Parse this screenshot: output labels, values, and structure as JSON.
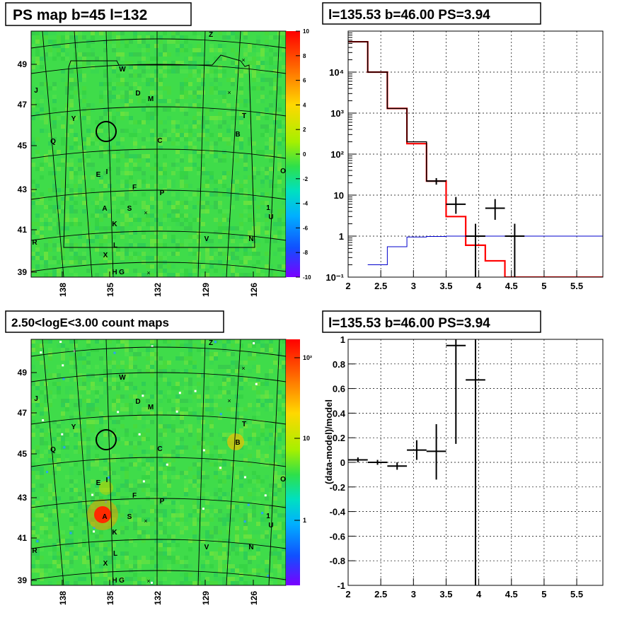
{
  "panels": {
    "ps_map": {
      "title": "PS map b=45 l=132",
      "colorbar_ticks": [
        "10",
        "8",
        "6",
        "4",
        "2",
        "0",
        "-2",
        "-4",
        "-6",
        "-8",
        "-10"
      ],
      "y_ticks": [
        "49",
        "47",
        "45",
        "43",
        "41",
        "39"
      ],
      "x_ticks": [
        "138",
        "135",
        "132",
        "129",
        "126"
      ]
    },
    "count_map": {
      "title": "2.50<logE<3.00 count maps",
      "colorbar_ticks": [
        "10²",
        "10",
        "1"
      ],
      "y_ticks": [
        "49",
        "47",
        "45",
        "43",
        "41",
        "39"
      ],
      "x_ticks": [
        "138",
        "135",
        "132",
        "129",
        "126"
      ]
    },
    "spectrum": {
      "title": "l=135.53 b=46.00 PS=3.94"
    },
    "ratio": {
      "title": "l=135.53 b=46.00 PS=3.94",
      "ylabel": "(data-model)/model"
    }
  },
  "source_labels": [
    {
      "name": "Z"
    },
    {
      "name": "W"
    },
    {
      "name": "J"
    },
    {
      "name": "D"
    },
    {
      "name": "M"
    },
    {
      "name": "T"
    },
    {
      "name": "Y"
    },
    {
      "name": "B"
    },
    {
      "name": "Q"
    },
    {
      "name": "C"
    },
    {
      "name": "O"
    },
    {
      "name": "E"
    },
    {
      "name": "I"
    },
    {
      "name": "F"
    },
    {
      "name": "P"
    },
    {
      "name": "A"
    },
    {
      "name": "S"
    },
    {
      "name": "1"
    },
    {
      "name": "U"
    },
    {
      "name": "K"
    },
    {
      "name": "R"
    },
    {
      "name": "V"
    },
    {
      "name": "N"
    },
    {
      "name": "L"
    },
    {
      "name": "X"
    },
    {
      "name": "H"
    },
    {
      "name": "G"
    }
  ],
  "chart_data": [
    {
      "type": "heatmap",
      "title": "PS map b=45 l=132",
      "xlabel": "",
      "ylabel": "",
      "x_ticks": [
        138,
        135,
        132,
        129,
        126
      ],
      "y_ticks": [
        49,
        47,
        45,
        43,
        41,
        39
      ],
      "zlim": [
        -10,
        10
      ],
      "colors": {
        "background": "#3ede4a",
        "hot": "#ff0000",
        "cold": "#7a00ff"
      }
    },
    {
      "type": "line",
      "title": "l=135.53 b=46.00 PS=3.94",
      "xlabel": "",
      "ylabel": "",
      "xlim": [
        2.0,
        5.9
      ],
      "ylim": [
        0.1,
        100000
      ],
      "y_scale": "log",
      "x_ticks": [
        "2",
        "2.5",
        "3",
        "3.5",
        "4",
        "4.5",
        "5",
        "5.5"
      ],
      "y_ticks": [
        "10⁻¹",
        "1",
        "10",
        "10²",
        "10³",
        "10⁴"
      ],
      "series": [
        {
          "style": "step",
          "color": "#ff0000",
          "edges": [
            2.0,
            2.3,
            2.6,
            2.9,
            3.2,
            3.5,
            3.8,
            4.1,
            4.4,
            5.9
          ],
          "values": [
            55000,
            10000,
            1300,
            180,
            22,
            3,
            0.6,
            0.25,
            0.1
          ]
        },
        {
          "style": "step",
          "color": "#000000",
          "edges": [
            2.0,
            2.3,
            2.6,
            2.9,
            3.2,
            3.5
          ],
          "values": [
            55000,
            10000,
            1300,
            200,
            22
          ]
        },
        {
          "style": "step",
          "color": "#0000cc",
          "edges": [
            2.3,
            2.6,
            2.9,
            3.2,
            3.5,
            3.8,
            4.1,
            4.4,
            5.9
          ],
          "values": [
            0.2,
            0.55,
            0.95,
            0.98,
            1.0,
            1.0,
            1.0,
            1.0
          ]
        },
        {
          "style": "errorbar",
          "color": "#000000",
          "points": [
            {
              "x": 3.35,
              "y": 22,
              "xerr": 0.15,
              "ylo": 18,
              "yhi": 26
            },
            {
              "x": 3.65,
              "y": 6,
              "xerr": 0.15,
              "ylo": 3.5,
              "yhi": 9
            },
            {
              "x": 3.95,
              "y": 1,
              "xerr": 0.15,
              "ylo": 0.1,
              "yhi": 2
            },
            {
              "x": 4.25,
              "y": 4.8,
              "xerr": 0.15,
              "ylo": 2.5,
              "yhi": 8
            },
            {
              "x": 4.55,
              "y": 1,
              "xerr": 0.15,
              "ylo": 0.1,
              "yhi": 2
            }
          ]
        }
      ]
    },
    {
      "type": "heatmap",
      "title": "2.50<logE<3.00 count maps",
      "xlabel": "",
      "ylabel": "",
      "x_ticks": [
        138,
        135,
        132,
        129,
        126
      ],
      "y_ticks": [
        49,
        47,
        45,
        43,
        41,
        39
      ],
      "z_scale": "log",
      "colors": {
        "background": "#3ede4a",
        "hot": "#ff0000",
        "cold": "#7a00ff"
      }
    },
    {
      "type": "scatter",
      "title": "l=135.53 b=46.00 PS=3.94",
      "xlabel": "",
      "ylabel": "(data-model)/model",
      "xlim": [
        2.0,
        5.9
      ],
      "ylim": [
        -1,
        1
      ],
      "x_ticks": [
        "2",
        "2.5",
        "3",
        "3.5",
        "4",
        "4.5",
        "5",
        "5.5"
      ],
      "y_ticks": [
        "1",
        "0.8",
        "0.6",
        "0.4",
        "0.2",
        "0",
        "-0.2",
        "-0.4",
        "-0.6",
        "-0.8",
        "-1"
      ],
      "points": [
        {
          "x": 2.15,
          "y": 0.02,
          "xerr": 0.15,
          "ylo": 0.0,
          "yhi": 0.04
        },
        {
          "x": 2.45,
          "y": 0.0,
          "xerr": 0.15,
          "ylo": -0.02,
          "yhi": 0.02
        },
        {
          "x": 2.75,
          "y": -0.03,
          "xerr": 0.15,
          "ylo": -0.06,
          "yhi": 0.0
        },
        {
          "x": 3.05,
          "y": 0.1,
          "xerr": 0.15,
          "ylo": 0.02,
          "yhi": 0.18
        },
        {
          "x": 3.35,
          "y": 0.09,
          "xerr": 0.15,
          "ylo": -0.14,
          "yhi": 0.31
        },
        {
          "x": 3.65,
          "y": 0.95,
          "xerr": 0.15,
          "ylo": 0.15,
          "yhi": 1.0
        },
        {
          "x": 3.95,
          "y": 0.67,
          "xerr": 0.15,
          "ylo": -1.0,
          "yhi": 1.0
        }
      ]
    }
  ]
}
